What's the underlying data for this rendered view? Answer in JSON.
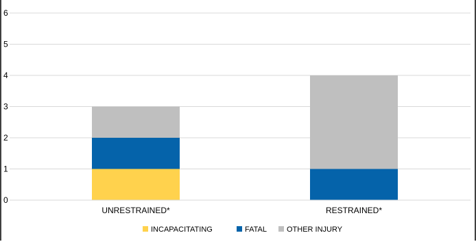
{
  "chart_data": {
    "type": "bar",
    "stacked": true,
    "title": "",
    "xlabel": "",
    "ylabel": "",
    "ylim": [
      0,
      6
    ],
    "yticks": [
      0,
      1,
      2,
      3,
      4,
      5,
      6
    ],
    "grid": true,
    "legend_position": "bottom",
    "categories": [
      "UNRESTRAINED*",
      "RESTRAINED*"
    ],
    "series": [
      {
        "name": "INCAPACITATING",
        "color": "#FFD24D",
        "values": [
          1,
          0
        ]
      },
      {
        "name": "FATAL",
        "color": "#0563AA",
        "values": [
          1,
          1
        ]
      },
      {
        "name": "OTHER INJURY",
        "color": "#BFBFBF",
        "values": [
          1,
          3
        ]
      }
    ]
  }
}
